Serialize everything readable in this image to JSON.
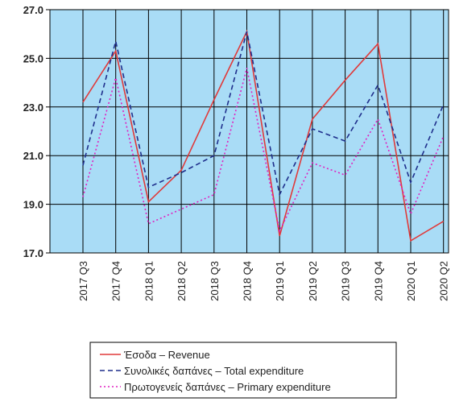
{
  "chart_data": {
    "type": "line",
    "categories": [
      "2017 Q3",
      "2017 Q4",
      "2018 Q1",
      "2018 Q2",
      "2018 Q3",
      "2018 Q4",
      "2019 Q1",
      "2019 Q2",
      "2019 Q3",
      "2019 Q4",
      "2020 Q1",
      "2020 Q2"
    ],
    "series": [
      {
        "name": "Έσοδα – Revenue",
        "color": "#e03a3a",
        "dash": "solid",
        "values": [
          23.2,
          25.3,
          19.1,
          20.4,
          23.3,
          26.1,
          17.7,
          22.5,
          24.1,
          25.6,
          17.5,
          18.3
        ]
      },
      {
        "name": "Συνολικές δαπάνες – Total expenditure",
        "color": "#1f2f8c",
        "dash": "dashed",
        "values": [
          20.6,
          25.7,
          19.7,
          20.3,
          21.0,
          26.1,
          19.4,
          22.1,
          21.6,
          23.9,
          19.9,
          23.1
        ]
      },
      {
        "name": "Πρωτογενείς δαπάνες – Primary expenditure",
        "color": "#e020c0",
        "dash": "dotted",
        "values": [
          19.3,
          24.2,
          18.2,
          18.8,
          19.4,
          24.6,
          17.9,
          20.7,
          20.2,
          22.5,
          18.6,
          21.8
        ]
      }
    ],
    "ylim": [
      17,
      27
    ],
    "yticks": [
      {
        "value": 17,
        "label": "17.0"
      },
      {
        "value": 19,
        "label": "19.0"
      },
      {
        "value": 21,
        "label": "21.0"
      },
      {
        "value": 23,
        "label": "23.0"
      },
      {
        "value": 25,
        "label": "25.0"
      },
      {
        "value": 27,
        "label": "27.0"
      }
    ],
    "grid": true,
    "background": "#a9dcf6",
    "legend": "bottom"
  }
}
